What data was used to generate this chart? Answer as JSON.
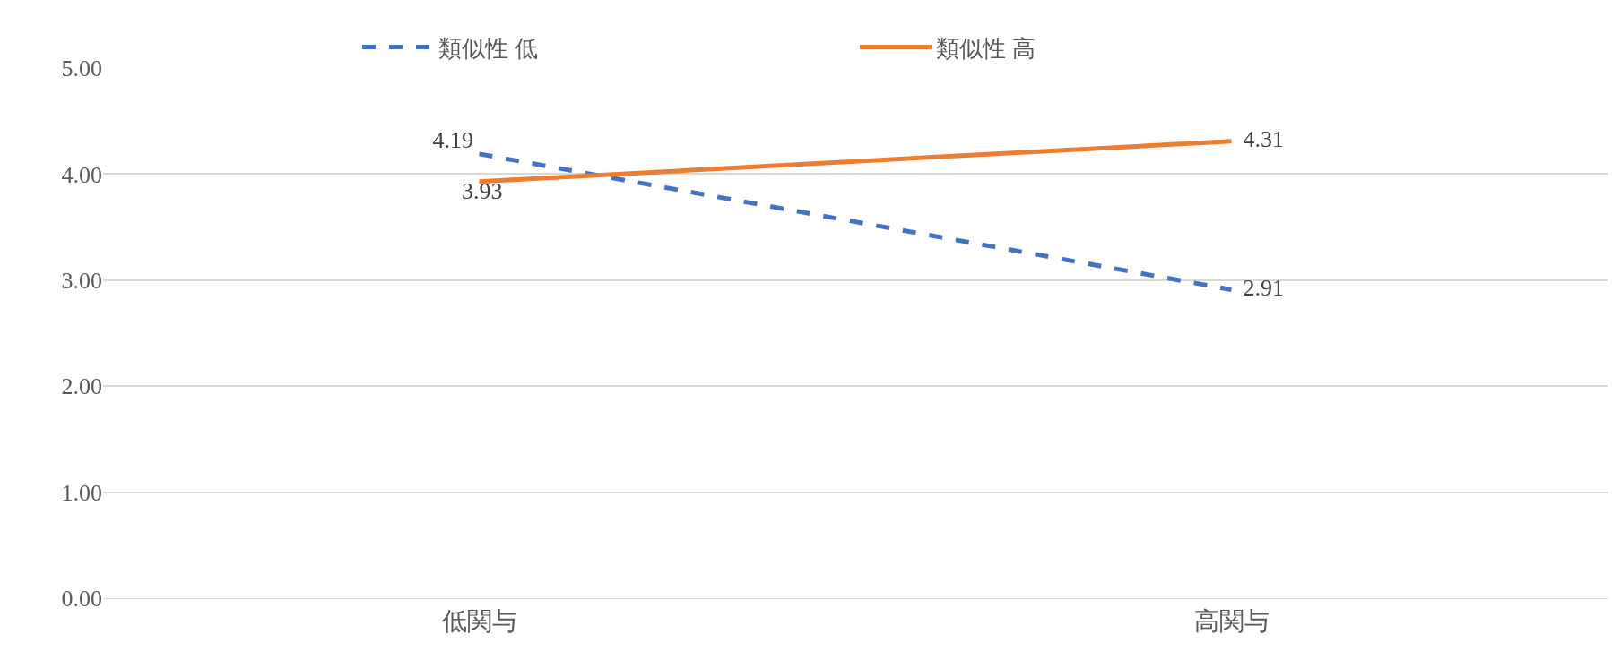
{
  "chart_data": {
    "type": "line",
    "categories": [
      "低関与",
      "高関与"
    ],
    "series": [
      {
        "name": "類似性 低",
        "color": "#4472c4",
        "values": [
          4.19,
          2.91
        ],
        "line_style": "dashed"
      },
      {
        "name": "類似性 高",
        "color": "#ed7d31",
        "values": [
          3.93,
          4.31
        ],
        "line_style": "solid"
      }
    ],
    "ylim": [
      0,
      5
    ],
    "yticks": [
      {
        "value": 0,
        "label": "0.00"
      },
      {
        "value": 1,
        "label": "1.00"
      },
      {
        "value": 2,
        "label": "2.00"
      },
      {
        "value": 3,
        "label": "3.00"
      },
      {
        "value": 4,
        "label": "4.00"
      },
      {
        "value": 5,
        "label": "5.00"
      }
    ],
    "grid": "y",
    "legend": "top",
    "data_labels": true,
    "marker": "none"
  }
}
